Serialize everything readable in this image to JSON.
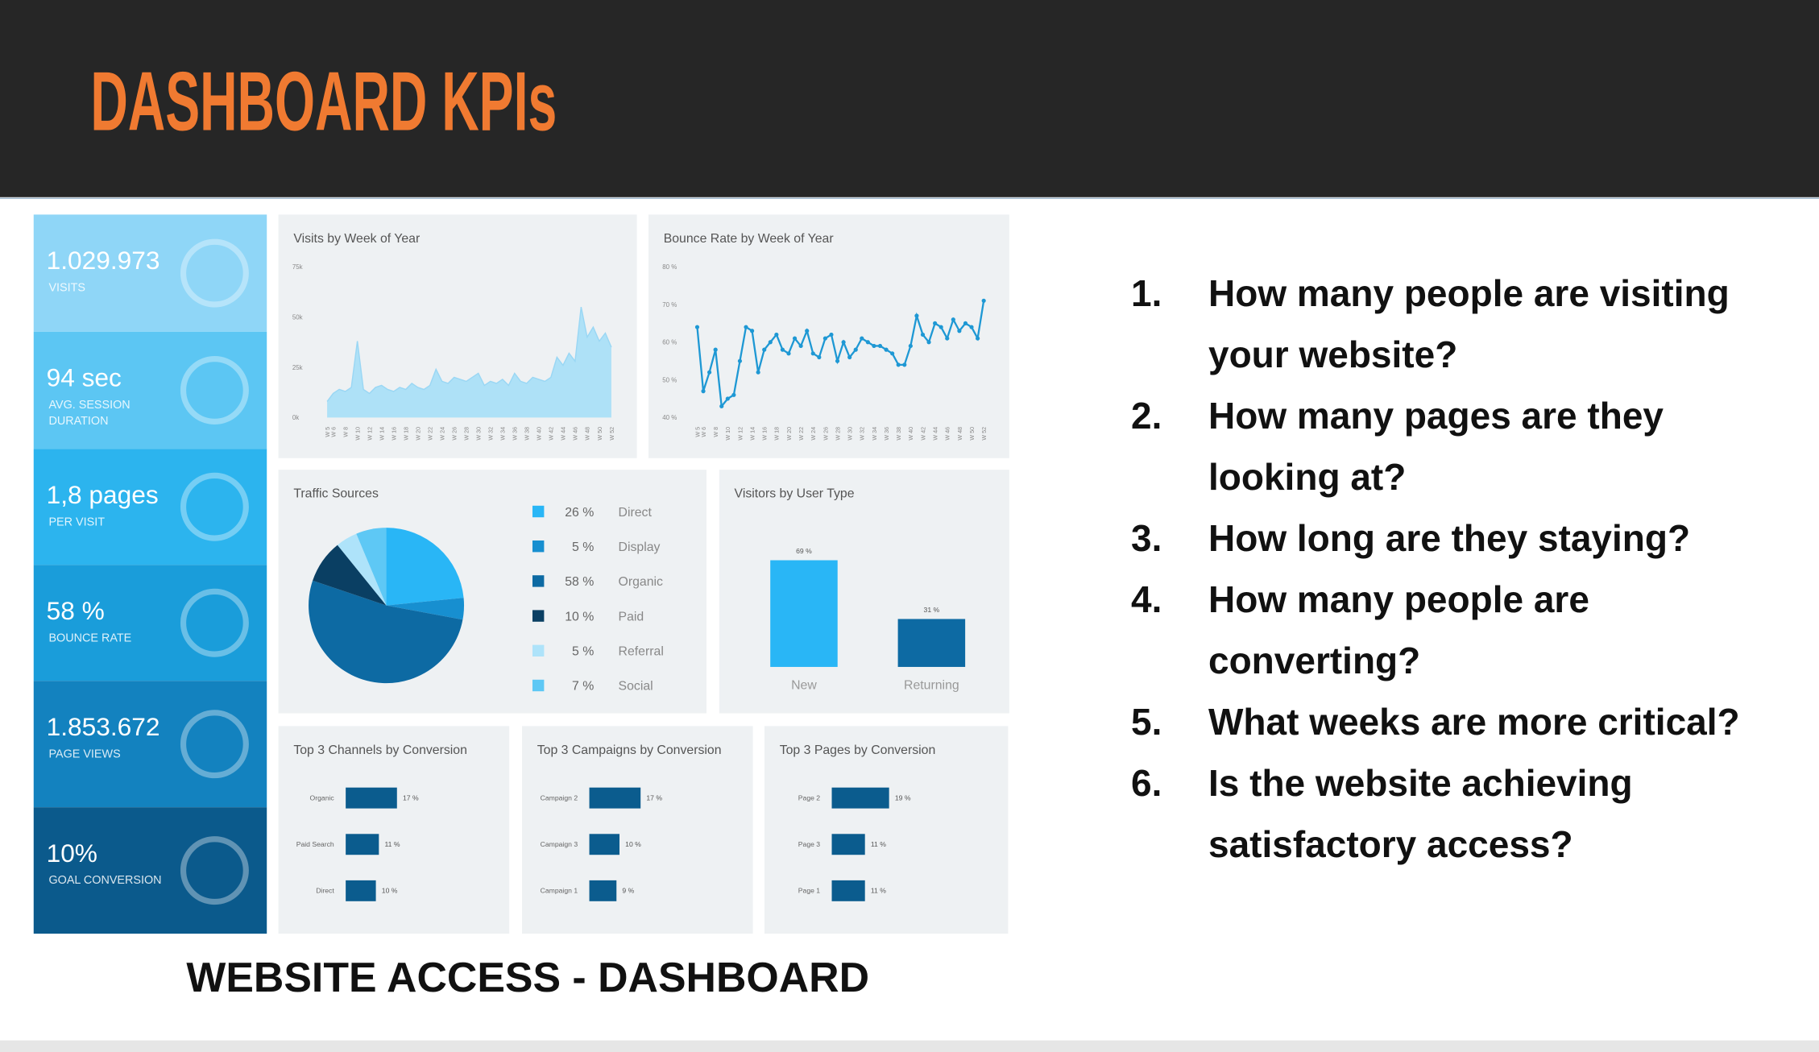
{
  "header": {
    "title": "DASHBOARD KPIs"
  },
  "kpis": [
    {
      "value": "1.029.973",
      "label": [
        "VISITS"
      ],
      "color": "#8fd6f7"
    },
    {
      "value": "94 sec",
      "label": [
        "AVG. SESSION",
        "DURATION"
      ],
      "color": "#5cc6f3"
    },
    {
      "value": "1,8 pages",
      "label": [
        "PER VISIT"
      ],
      "color": "#2cb4ee"
    },
    {
      "value": "58 %",
      "label": [
        "BOUNCE RATE"
      ],
      "color": "#1a9dda"
    },
    {
      "value": "1.853.672",
      "label": [
        "PAGE VIEWS"
      ],
      "color": "#1382bf"
    },
    {
      "value": "10%",
      "label": [
        "GOAL CONVERSION"
      ],
      "color": "#0b5a8c"
    }
  ],
  "chart_data": [
    {
      "type": "area",
      "title": "Visits by Week of Year",
      "color": "#aee1f7",
      "line_color": "#9ad7f4",
      "x": [
        5,
        6,
        7,
        8,
        9,
        10,
        11,
        12,
        13,
        14,
        15,
        16,
        17,
        18,
        19,
        20,
        21,
        22,
        23,
        24,
        25,
        26,
        27,
        28,
        29,
        30,
        31,
        32,
        33,
        34,
        35,
        36,
        37,
        38,
        39,
        40,
        41,
        42,
        43,
        44,
        45,
        46,
        47,
        48,
        49,
        50,
        51,
        52
      ],
      "values": [
        8000,
        12000,
        14000,
        13000,
        15000,
        38000,
        14000,
        12000,
        15000,
        16000,
        14000,
        13000,
        15000,
        14000,
        17000,
        15000,
        14000,
        16000,
        24000,
        18000,
        17000,
        20000,
        19000,
        18000,
        20000,
        22000,
        16000,
        18000,
        17000,
        19000,
        16000,
        22000,
        18000,
        17000,
        20000,
        19000,
        18000,
        20000,
        30000,
        26000,
        32000,
        28000,
        55000,
        40000,
        45000,
        38000,
        42000,
        35000
      ],
      "xlim": [
        5,
        52
      ],
      "xticks": [
        {
          "value": 5,
          "label": "W 5"
        },
        {
          "value": 6,
          "label": "W 6"
        },
        {
          "value": 8,
          "label": "W 8"
        },
        {
          "value": 10,
          "label": "W 10"
        },
        {
          "value": 12,
          "label": "W 12"
        },
        {
          "value": 14,
          "label": "W 14"
        },
        {
          "value": 16,
          "label": "W 16"
        },
        {
          "value": 18,
          "label": "W 18"
        },
        {
          "value": 20,
          "label": "W 20"
        },
        {
          "value": 22,
          "label": "W 22"
        },
        {
          "value": 24,
          "label": "W 24"
        },
        {
          "value": 26,
          "label": "W 26"
        },
        {
          "value": 28,
          "label": "W 28"
        },
        {
          "value": 30,
          "label": "W 30"
        },
        {
          "value": 32,
          "label": "W 32"
        },
        {
          "value": 34,
          "label": "W 34"
        },
        {
          "value": 36,
          "label": "W 36"
        },
        {
          "value": 38,
          "label": "W 38"
        },
        {
          "value": 40,
          "label": "W 40"
        },
        {
          "value": 42,
          "label": "W 42"
        },
        {
          "value": 44,
          "label": "W 44"
        },
        {
          "value": 46,
          "label": "W 46"
        },
        {
          "value": 48,
          "label": "W 48"
        },
        {
          "value": 50,
          "label": "W 50"
        },
        {
          "value": 52,
          "label": "W 52"
        }
      ],
      "ylim": [
        0,
        75000
      ],
      "yticks": [
        {
          "value": 0,
          "label": "0k"
        },
        {
          "value": 25000,
          "label": "25k"
        },
        {
          "value": 50000,
          "label": "50k"
        },
        {
          "value": 75000,
          "label": "75k"
        }
      ]
    },
    {
      "type": "line",
      "title": "Bounce Rate by Week of Year",
      "color": "#1e98d4",
      "x": [
        5,
        6,
        7,
        8,
        9,
        10,
        11,
        12,
        13,
        14,
        15,
        16,
        17,
        18,
        19,
        20,
        21,
        22,
        23,
        24,
        25,
        26,
        27,
        28,
        29,
        30,
        31,
        32,
        33,
        34,
        35,
        36,
        37,
        38,
        39,
        40,
        41,
        42,
        43,
        44,
        45,
        46,
        47,
        48,
        49,
        50,
        51,
        52
      ],
      "values": [
        64,
        47,
        52,
        58,
        43,
        45,
        46,
        55,
        64,
        63,
        52,
        58,
        60,
        62,
        58,
        57,
        61,
        59,
        63,
        57,
        56,
        61,
        62,
        55,
        60,
        56,
        58,
        61,
        60,
        59,
        59,
        58,
        57,
        54,
        54,
        59,
        67,
        62,
        60,
        65,
        64,
        61,
        66,
        63,
        65,
        64,
        61,
        71
      ],
      "xlim": [
        5,
        52
      ],
      "xticks": [
        {
          "value": 5,
          "label": "W 5"
        },
        {
          "value": 6,
          "label": "W 6"
        },
        {
          "value": 8,
          "label": "W 8"
        },
        {
          "value": 10,
          "label": "W 10"
        },
        {
          "value": 12,
          "label": "W 12"
        },
        {
          "value": 14,
          "label": "W 14"
        },
        {
          "value": 16,
          "label": "W 16"
        },
        {
          "value": 18,
          "label": "W 18"
        },
        {
          "value": 20,
          "label": "W 20"
        },
        {
          "value": 22,
          "label": "W 22"
        },
        {
          "value": 24,
          "label": "W 24"
        },
        {
          "value": 26,
          "label": "W 26"
        },
        {
          "value": 28,
          "label": "W 28"
        },
        {
          "value": 30,
          "label": "W 30"
        },
        {
          "value": 32,
          "label": "W 32"
        },
        {
          "value": 34,
          "label": "W 34"
        },
        {
          "value": 36,
          "label": "W 36"
        },
        {
          "value": 38,
          "label": "W 38"
        },
        {
          "value": 40,
          "label": "W 40"
        },
        {
          "value": 42,
          "label": "W 42"
        },
        {
          "value": 44,
          "label": "W 44"
        },
        {
          "value": 46,
          "label": "W 46"
        },
        {
          "value": 48,
          "label": "W 48"
        },
        {
          "value": 50,
          "label": "W 50"
        },
        {
          "value": 52,
          "label": "W 52"
        }
      ],
      "ylim": [
        40,
        80
      ],
      "yticks": [
        {
          "value": 40,
          "label": "40 %"
        },
        {
          "value": 50,
          "label": "50 %"
        },
        {
          "value": 60,
          "label": "60 %"
        },
        {
          "value": 70,
          "label": "70 %"
        },
        {
          "value": 80,
          "label": "80 %"
        }
      ]
    },
    {
      "type": "pie",
      "title": "Traffic Sources",
      "categories": [
        "Direct",
        "Display",
        "Organic",
        "Paid",
        "Referral",
        "Social"
      ],
      "values": [
        26,
        5,
        58,
        10,
        5,
        7
      ],
      "value_labels": [
        "26 %",
        "5 %",
        "58 %",
        "10 %",
        "5 %",
        "7 %"
      ],
      "colors": [
        "#29b6f6",
        "#178fd0",
        "#0d6aa3",
        "#0a3f63",
        "#aee3fa",
        "#5ec8f5"
      ]
    },
    {
      "type": "bar",
      "title": "Visitors by User Type",
      "categories": [
        "New",
        "Returning"
      ],
      "values": [
        69,
        31
      ],
      "value_labels": [
        "69 %",
        "31 %"
      ],
      "colors": [
        "#29b6f6",
        "#0d6aa3"
      ]
    },
    {
      "type": "hbar",
      "title": "Top 3 Channels by Conversion",
      "color": "#0b5c8e",
      "categories": [
        "Organic",
        "Paid Search",
        "Direct"
      ],
      "values": [
        17,
        11,
        10
      ],
      "value_labels": [
        "17 %",
        "11 %",
        "10 %"
      ]
    },
    {
      "type": "hbar",
      "title": "Top 3 Campaigns by Conversion",
      "color": "#0b5c8e",
      "categories": [
        "Campaign 2",
        "Campaign 3",
        "Campaign 1"
      ],
      "values": [
        17,
        10,
        9
      ],
      "value_labels": [
        "17 %",
        "10 %",
        "9 %"
      ]
    },
    {
      "type": "hbar",
      "title": "Top 3 Pages by Conversion",
      "color": "#0b5c8e",
      "categories": [
        "Page 2",
        "Page 3",
        "Page 1"
      ],
      "values": [
        19,
        11,
        11
      ],
      "value_labels": [
        "19 %",
        "11 %",
        "11 %"
      ]
    }
  ],
  "caption": "WEBSITE ACCESS - DASHBOARD",
  "questions": [
    {
      "number": "1.",
      "text": "How many people are visiting your website?"
    },
    {
      "number": "2.",
      "text": "How many pages are they looking at?"
    },
    {
      "number": "3.",
      "text": "How long are they staying?"
    },
    {
      "number": "4.",
      "text": "How many people are converting?"
    },
    {
      "number": "5.",
      "text": "What weeks are more critical?"
    },
    {
      "number": "6.",
      "text": "Is the website achieving satisfactory access?"
    }
  ]
}
